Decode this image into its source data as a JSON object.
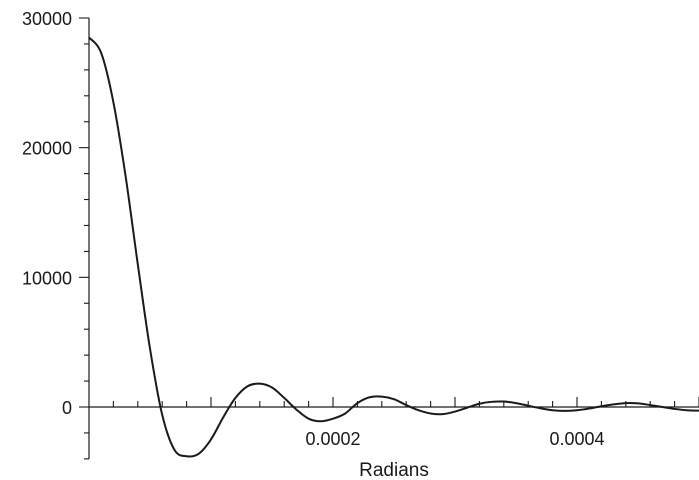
{
  "chart_data": {
    "type": "line",
    "title": "",
    "xlabel": "Radians",
    "ylabel": "",
    "xlim": [
      0,
      0.0005
    ],
    "ylim": [
      -4000,
      30000
    ],
    "x_ticks": [
      {
        "value": 0.0002,
        "label": "0.0002"
      },
      {
        "value": 0.0004,
        "label": "0.0004"
      }
    ],
    "y_ticks": [
      {
        "value": 0,
        "label": "0"
      },
      {
        "value": 10000,
        "label": "10000"
      },
      {
        "value": 20000,
        "label": "20000"
      },
      {
        "value": 30000,
        "label": "30000"
      }
    ],
    "grid": false,
    "series": [
      {
        "color": "#1a1a1a",
        "x": [
          0,
          1e-05,
          2e-05,
          3e-05,
          4e-05,
          5e-05,
          6e-05,
          7e-05,
          8e-05,
          9e-05,
          0.0001,
          0.00011,
          0.00012,
          0.00013,
          0.00014,
          0.00015,
          0.00016,
          0.00017,
          0.00018,
          0.00019,
          0.0002,
          0.00021,
          0.00022,
          0.00023,
          0.00024,
          0.00025,
          0.00026,
          0.00027,
          0.00028,
          0.00029,
          0.0003,
          0.00031,
          0.00032,
          0.00033,
          0.00034,
          0.00035,
          0.00036,
          0.00037,
          0.00038,
          0.00039,
          0.0004,
          0.00041,
          0.00042,
          0.00043,
          0.00044,
          0.00045,
          0.00046,
          0.00047,
          0.00048,
          0.00049,
          0.0005
        ],
        "y": [
          28500,
          27300,
          23500,
          17800,
          11000,
          4500,
          -600,
          -3300,
          -3800,
          -3600,
          -2500,
          -800,
          700,
          1600,
          1800,
          1500,
          700,
          -200,
          -900,
          -1100,
          -900,
          -500,
          300,
          750,
          800,
          600,
          150,
          -250,
          -500,
          -550,
          -350,
          -50,
          250,
          400,
          420,
          300,
          100,
          -100,
          -250,
          -300,
          -250,
          -120,
          60,
          200,
          300,
          280,
          150,
          0,
          -150,
          -250,
          -280
        ]
      }
    ]
  }
}
